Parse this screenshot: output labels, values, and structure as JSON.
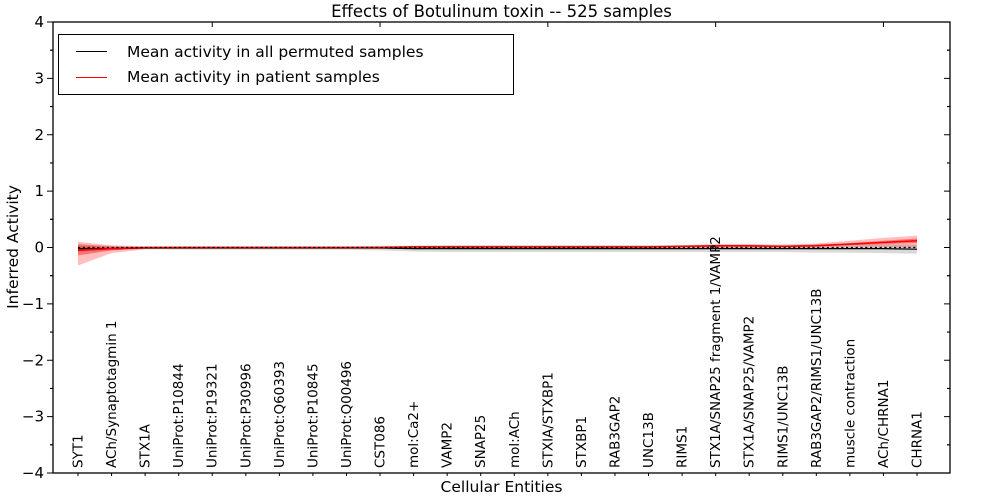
{
  "chart_data": {
    "type": "line",
    "title": "Effects of Botulinum toxin -- 525 samples",
    "xlabel": "Cellular Entities",
    "ylabel": "Inferred Activity",
    "ylim": [
      -4,
      4
    ],
    "grid": false,
    "legend_position": "upper left",
    "ytick_values": [
      4,
      3,
      2,
      1,
      0,
      -1,
      -2,
      -3,
      -4
    ],
    "ytick_labels": [
      "4",
      "3",
      "2",
      "1",
      "0",
      "−1",
      "−2",
      "−3",
      "−4"
    ],
    "ytick_minor_step": 0.5,
    "top_tick_indices": [
      4,
      9,
      14,
      19,
      24
    ],
    "categories": [
      "SYT1",
      "ACh/Synaptotagmin 1",
      "STX1A",
      "UniProt:P10844",
      "UniProt:P19321",
      "UniProt:P30996",
      "UniProt:Q60393",
      "UniProt:P10845",
      "UniProt:Q00496",
      "CST086",
      "mol:Ca2+",
      "VAMP2",
      "SNAP25",
      "mol:ACh",
      "STXIA/STXBP1",
      "STXBP1",
      "RAB3GAP2",
      "UNC13B",
      "RIMS1",
      "STX1A/SNAP25 fragment 1/VAMP2",
      "STX1A/SNAP25/VAMP2",
      "RIMS1/UNC13B",
      "RAB3GAP2/RIMS1/UNC13B",
      "muscle contraction",
      "ACh/CHRNA1",
      "CHRNA1"
    ],
    "zero_line": {
      "y": 0,
      "style": "dashed",
      "color": "#000000"
    },
    "colors": {
      "permuted": "#000000",
      "patient": "#ff0000",
      "permuted_band": "rgba(0,0,0,0.15)",
      "patient_band_outer": "rgba(255,0,0,0.25)",
      "patient_band_inner": "rgba(255,0,0,0.40)"
    },
    "legend": [
      {
        "label": "Mean activity in all permuted samples",
        "color": "#000000"
      },
      {
        "label": "Mean activity in patient samples",
        "color": "#ff0000"
      }
    ],
    "series": [
      {
        "name": "Mean activity in all permuted samples",
        "color": "#000000",
        "values": [
          -0.02,
          -0.02,
          -0.01,
          -0.01,
          -0.01,
          -0.01,
          -0.01,
          -0.01,
          -0.01,
          -0.01,
          -0.02,
          -0.02,
          -0.02,
          -0.02,
          -0.02,
          -0.02,
          -0.02,
          -0.02,
          -0.02,
          -0.02,
          -0.02,
          -0.02,
          -0.02,
          -0.02,
          -0.02,
          -0.03
        ],
        "std": [
          0.05,
          0.03,
          0.02,
          0.03,
          0.03,
          0.03,
          0.03,
          0.03,
          0.03,
          0.04,
          0.05,
          0.06,
          0.06,
          0.06,
          0.06,
          0.06,
          0.06,
          0.06,
          0.06,
          0.06,
          0.06,
          0.06,
          0.07,
          0.07,
          0.08,
          0.08
        ]
      },
      {
        "name": "Mean activity in patient samples",
        "color": "#ff0000",
        "values": [
          -0.05,
          -0.02,
          0.0,
          0.0,
          0.0,
          0.0,
          0.0,
          0.0,
          0.0,
          0.0,
          0.01,
          0.01,
          0.01,
          0.01,
          0.01,
          0.01,
          0.01,
          0.01,
          0.02,
          0.03,
          0.03,
          0.02,
          0.03,
          0.06,
          0.09,
          0.12
        ],
        "band_outer": {
          "hi": [
            0.1,
            0.04,
            0.02,
            0.02,
            0.02,
            0.02,
            0.02,
            0.02,
            0.02,
            0.02,
            0.03,
            0.03,
            0.03,
            0.03,
            0.03,
            0.03,
            0.03,
            0.03,
            0.04,
            0.06,
            0.06,
            0.05,
            0.07,
            0.12,
            0.17,
            0.21
          ],
          "lo": [
            -0.32,
            -0.1,
            -0.03,
            -0.02,
            -0.02,
            -0.02,
            -0.02,
            -0.02,
            -0.02,
            -0.02,
            -0.01,
            -0.01,
            -0.01,
            -0.01,
            -0.01,
            -0.01,
            -0.01,
            -0.01,
            0.0,
            0.0,
            0.0,
            0.0,
            0.0,
            0.01,
            0.01,
            0.0
          ]
        },
        "band_inner": {
          "hi": [
            0.06,
            0.02,
            0.01,
            0.01,
            0.01,
            0.01,
            0.01,
            0.01,
            0.01,
            0.01,
            0.02,
            0.02,
            0.02,
            0.02,
            0.02,
            0.02,
            0.02,
            0.02,
            0.03,
            0.04,
            0.04,
            0.03,
            0.05,
            0.08,
            0.12,
            0.16
          ],
          "lo": [
            -0.14,
            -0.05,
            -0.01,
            -0.01,
            -0.01,
            -0.01,
            -0.01,
            -0.01,
            -0.01,
            -0.01,
            0.0,
            0.0,
            0.0,
            0.0,
            0.0,
            0.0,
            0.0,
            0.0,
            0.01,
            0.01,
            0.01,
            0.01,
            0.02,
            0.04,
            0.06,
            0.08
          ]
        }
      }
    ]
  }
}
